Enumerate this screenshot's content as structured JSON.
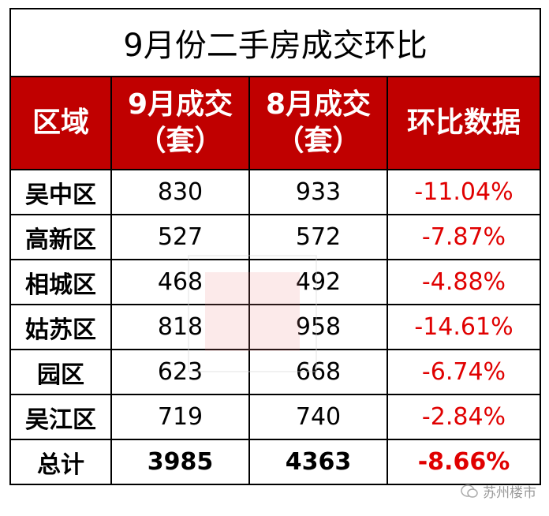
{
  "title": "9月份二手房成交环比",
  "table": {
    "header": [
      [
        "区域"
      ],
      [
        "9月成交",
        "（套）"
      ],
      [
        "8月成交",
        "（套）"
      ],
      [
        "环比数据"
      ]
    ],
    "rows": [
      [
        "吴中区",
        830,
        933,
        "-11.04%"
      ],
      [
        "高新区",
        527,
        572,
        "-7.87%"
      ],
      [
        "相城区",
        468,
        492,
        "-4.88%"
      ],
      [
        "姑苏区",
        818,
        958,
        "-14.61%"
      ],
      [
        "园区",
        623,
        668,
        "-6.74%"
      ],
      [
        "吴江区",
        719,
        740,
        "-2.84%"
      ],
      [
        "总计",
        3985,
        4363,
        "-8.66%"
      ]
    ]
  },
  "watermark": "苏州楼市"
}
